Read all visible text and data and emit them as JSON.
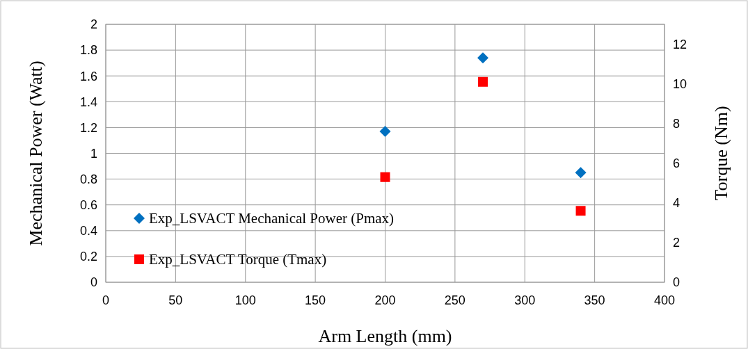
{
  "chart_data": {
    "type": "scatter",
    "xlabel": "Arm Length (mm)",
    "ylabel": "Mechanical Power (Watt)",
    "y2label": "Torque (Nm)",
    "x": [
      200,
      270,
      340
    ],
    "series": [
      {
        "name": "Exp_LSVACT Mechanical Power (Pmax)",
        "color": "#0070c0",
        "values": [
          1.17,
          1.74,
          0.85
        ],
        "marker": "diamond"
      },
      {
        "name": "Exp_LSVACT Torque (Tmax)",
        "color": "#ff0000",
        "values": [
          5.3,
          10.1,
          3.6
        ],
        "marker": "square",
        "axis": "y2"
      }
    ],
    "xlim": [
      0,
      400
    ],
    "xticks": [
      0,
      50,
      100,
      150,
      200,
      250,
      300,
      350,
      400
    ],
    "ylim": [
      0,
      2
    ],
    "yticks": [
      0,
      0.2,
      0.4,
      0.6,
      0.8,
      1,
      1.2,
      1.4,
      1.6,
      1.8,
      2
    ],
    "y2lim": [
      0,
      13
    ],
    "y2ticks": [
      0,
      2,
      4,
      6,
      8,
      10,
      12
    ],
    "grid": true,
    "legend": "left"
  }
}
